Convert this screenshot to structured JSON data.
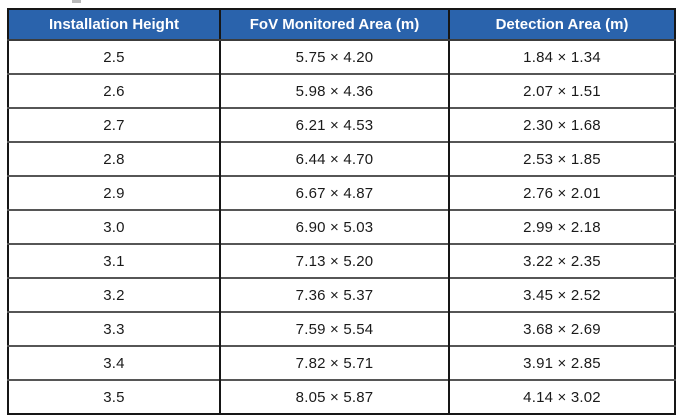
{
  "colors": {
    "header_bg": "#2A63AC",
    "header_text": "#FFFFFF",
    "outer_border": "#161616",
    "row_divider": "#565656",
    "body_text": "#1A1A1A"
  },
  "table": {
    "columns": [
      "Installation Height",
      "FoV Monitored Area (m)",
      "Detection Area (m)"
    ],
    "rows": [
      [
        "2.5",
        "5.75 × 4.20",
        "1.84 × 1.34"
      ],
      [
        "2.6",
        "5.98 × 4.36",
        "2.07 × 1.51"
      ],
      [
        "2.7",
        "6.21 × 4.53",
        "2.30 × 1.68"
      ],
      [
        "2.8",
        "6.44 × 4.70",
        "2.53 × 1.85"
      ],
      [
        "2.9",
        "6.67 × 4.87",
        "2.76 × 2.01"
      ],
      [
        "3.0",
        "6.90 × 5.03",
        "2.99 × 2.18"
      ],
      [
        "3.1",
        "7.13 × 5.20",
        "3.22 × 2.35"
      ],
      [
        "3.2",
        "7.36 × 5.37",
        "3.45 × 2.52"
      ],
      [
        "3.3",
        "7.59 × 5.54",
        "3.68 × 2.69"
      ],
      [
        "3.4",
        "7.82 × 5.71",
        "3.91 × 2.85"
      ],
      [
        "3.5",
        "8.05 × 5.87",
        "4.14 × 3.02"
      ]
    ]
  }
}
